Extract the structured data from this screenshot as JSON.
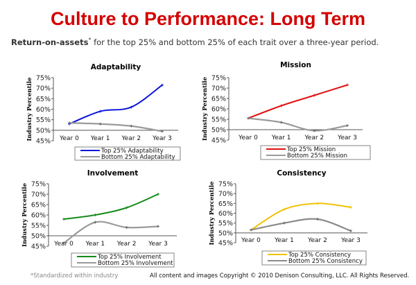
{
  "header": {
    "title": "Culture to Performance: Long Term",
    "subtitle_bold": "Return-on-assets",
    "subtitle_mark": "*",
    "subtitle_rest": " for the top 25% and bottom 25% of each trait over a three-year period."
  },
  "footer": {
    "footnote": "*Standardized within industry",
    "copyright": "All content and images Copyright © 2010 Denison Consulting, LLC. All Rights Reserved."
  },
  "chart_data": [
    {
      "type": "line",
      "title": "Adaptability",
      "ylabel": "Industry Percentile",
      "categories": [
        "Year 0",
        "Year 1",
        "Year 2",
        "Year 3"
      ],
      "ylim": [
        45,
        75
      ],
      "yticks": [
        "45%",
        "50%",
        "55%",
        "60%",
        "65%",
        "70%",
        "75%"
      ],
      "legend": "bottom",
      "series": [
        {
          "name": "Top 25% Adaptability",
          "color": "#0a14d8",
          "values": [
            53,
            59,
            61,
            71.5
          ]
        },
        {
          "name": "Bottom 25% Adaptability",
          "color": "#9a9a9a",
          "values": [
            53.5,
            53,
            52,
            49.5
          ]
        }
      ]
    },
    {
      "type": "line",
      "title": "Mission",
      "ylabel": "Industry Percentile",
      "categories": [
        "Year 0",
        "Year 1",
        "Year 2",
        "Year 3"
      ],
      "ylim": [
        45,
        75
      ],
      "yticks": [
        "45%",
        "50%",
        "55%",
        "60%",
        "65%",
        "70%",
        "75%"
      ],
      "legend": "bottom",
      "series": [
        {
          "name": "Top 25% Mission",
          "color": "#e01010",
          "values": [
            55.5,
            61.5,
            66.5,
            71.5
          ]
        },
        {
          "name": "Bottom 25% Mission",
          "color": "#9a9a9a",
          "values": [
            55.5,
            53.5,
            49.5,
            52
          ]
        }
      ]
    },
    {
      "type": "line",
      "title": "Involvement",
      "ylabel": "Industry Percentile",
      "categories": [
        "Year 0",
        "Year 1",
        "Year 2",
        "Year 3"
      ],
      "ylim": [
        45,
        75
      ],
      "yticks": [
        "45%",
        "50%",
        "55%",
        "60%",
        "65%",
        "70%",
        "75%"
      ],
      "legend": "bottom",
      "series": [
        {
          "name": "Top 25% Involvement",
          "color": "#138a1a",
          "values": [
            58,
            60,
            63.5,
            70
          ]
        },
        {
          "name": "Bottom 25% Involvement",
          "color": "#9a9a9a",
          "values": [
            46.5,
            56.5,
            54,
            54.5
          ]
        }
      ]
    },
    {
      "type": "line",
      "title": "Consistency",
      "ylabel": "Industry Percentile",
      "categories": [
        "Year 0",
        "Year 1",
        "Year 2",
        "Year 3"
      ],
      "ylim": [
        45,
        75
      ],
      "yticks": [
        "45%",
        "50%",
        "55%",
        "60%",
        "65%",
        "70%",
        "75%"
      ],
      "legend": "bottom",
      "series": [
        {
          "name": "Top 25% Consistency",
          "color": "#f2c200",
          "values": [
            51.5,
            62,
            65,
            63
          ]
        },
        {
          "name": "Bottom 25% Consistency",
          "color": "#8a8a8a",
          "values": [
            51.5,
            55,
            57,
            51
          ]
        }
      ]
    }
  ]
}
